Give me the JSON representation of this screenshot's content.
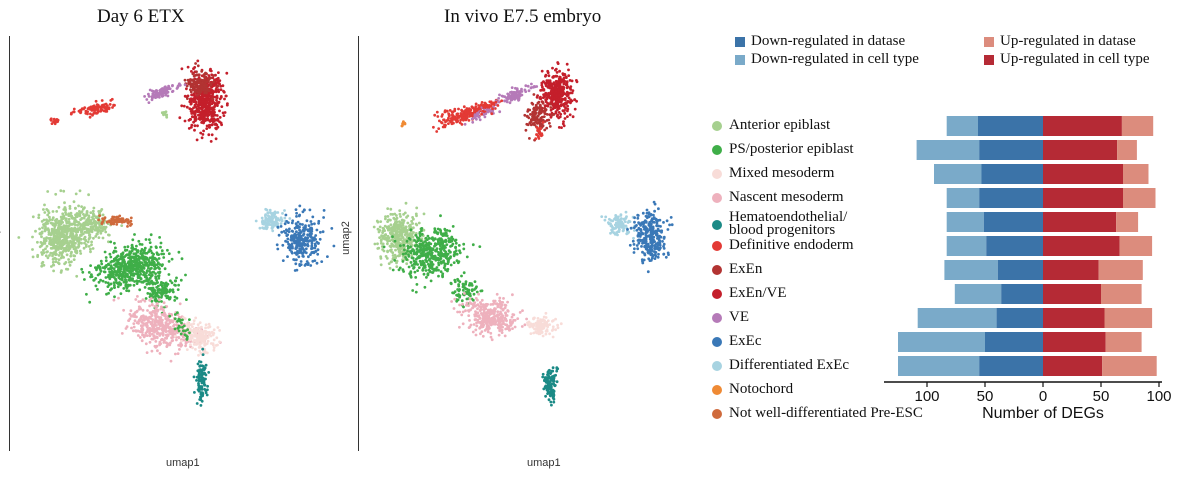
{
  "umap_panels": [
    {
      "title": "Day 6 ETX",
      "xlabel": "umap1",
      "ylabel": "umap2"
    },
    {
      "title": "In vivo E7.5 embryo",
      "xlabel": "umap1",
      "ylabel": "umap2"
    }
  ],
  "cell_types": [
    {
      "label": "Anterior epiblast",
      "color": "#a6d08f"
    },
    {
      "label": "PS/posterior epiblast",
      "color": "#3fae48"
    },
    {
      "label": "Mixed mesoderm",
      "color": "#f8dcd8"
    },
    {
      "label": "Nascent mesoderm",
      "color": "#eeb1bd"
    },
    {
      "label": "Hematoendothelial/\nblood progenitors",
      "color": "#1b8a86"
    },
    {
      "label": "Definitive endoderm",
      "color": "#e33a35"
    },
    {
      "label": "ExEn",
      "color": "#b23332"
    },
    {
      "label": "ExEn/VE",
      "color": "#c41f2b"
    },
    {
      "label": "VE",
      "color": "#b57ab8"
    },
    {
      "label": "ExEc",
      "color": "#3a78b7"
    },
    {
      "label": "Differentiated ExEc",
      "color": "#a7d3e1"
    },
    {
      "label": "Notochord",
      "color": "#ef8a34"
    },
    {
      "label": "Not well-differentiated Pre-ESC",
      "color": "#cf6a3c"
    }
  ],
  "deg_legend": [
    {
      "label": "Down-regulated in datase",
      "color": "#3b73a8"
    },
    {
      "label": "Down-regulated in cell type",
      "color": "#7aaac9"
    },
    {
      "label": "Up-regulated in datase",
      "color": "#dc8c7d"
    },
    {
      "label": "Up-regulated in cell type",
      "color": "#b52a35"
    }
  ],
  "chart_data": {
    "type": "bar",
    "orientation": "horizontal-diverging",
    "xlabel": "Number of DEGs",
    "xlim": [
      -115,
      100
    ],
    "xticks": [
      -100,
      -50,
      0,
      50,
      100
    ],
    "xtick_labels": [
      "100",
      "50",
      "0",
      "50",
      "100"
    ],
    "categories": [
      "Anterior epiblast",
      "PS/posterior epiblast",
      "Mixed mesoderm",
      "Nascent mesoderm",
      "Hematoendothelial/ blood progenitors",
      "Definitive endoderm",
      "ExEn",
      "ExEn/VE",
      "VE",
      "ExEc",
      "Differentiated ExEc"
    ],
    "series": [
      {
        "name": "Down-regulated in datase",
        "values": [
          56,
          55,
          53,
          55,
          51,
          49,
          39,
          36,
          40,
          50,
          55
        ]
      },
      {
        "name": "Down-regulated in cell type",
        "values": [
          27,
          54,
          41,
          28,
          32,
          34,
          46,
          40,
          68,
          75,
          70
        ]
      },
      {
        "name": "Up-regulated in cell type",
        "values": [
          68,
          64,
          69,
          69,
          63,
          66,
          48,
          50,
          53,
          54,
          51
        ]
      },
      {
        "name": "Up-regulated in datase",
        "values": [
          27,
          17,
          22,
          28,
          19,
          28,
          38,
          35,
          41,
          31,
          47
        ]
      }
    ]
  }
}
